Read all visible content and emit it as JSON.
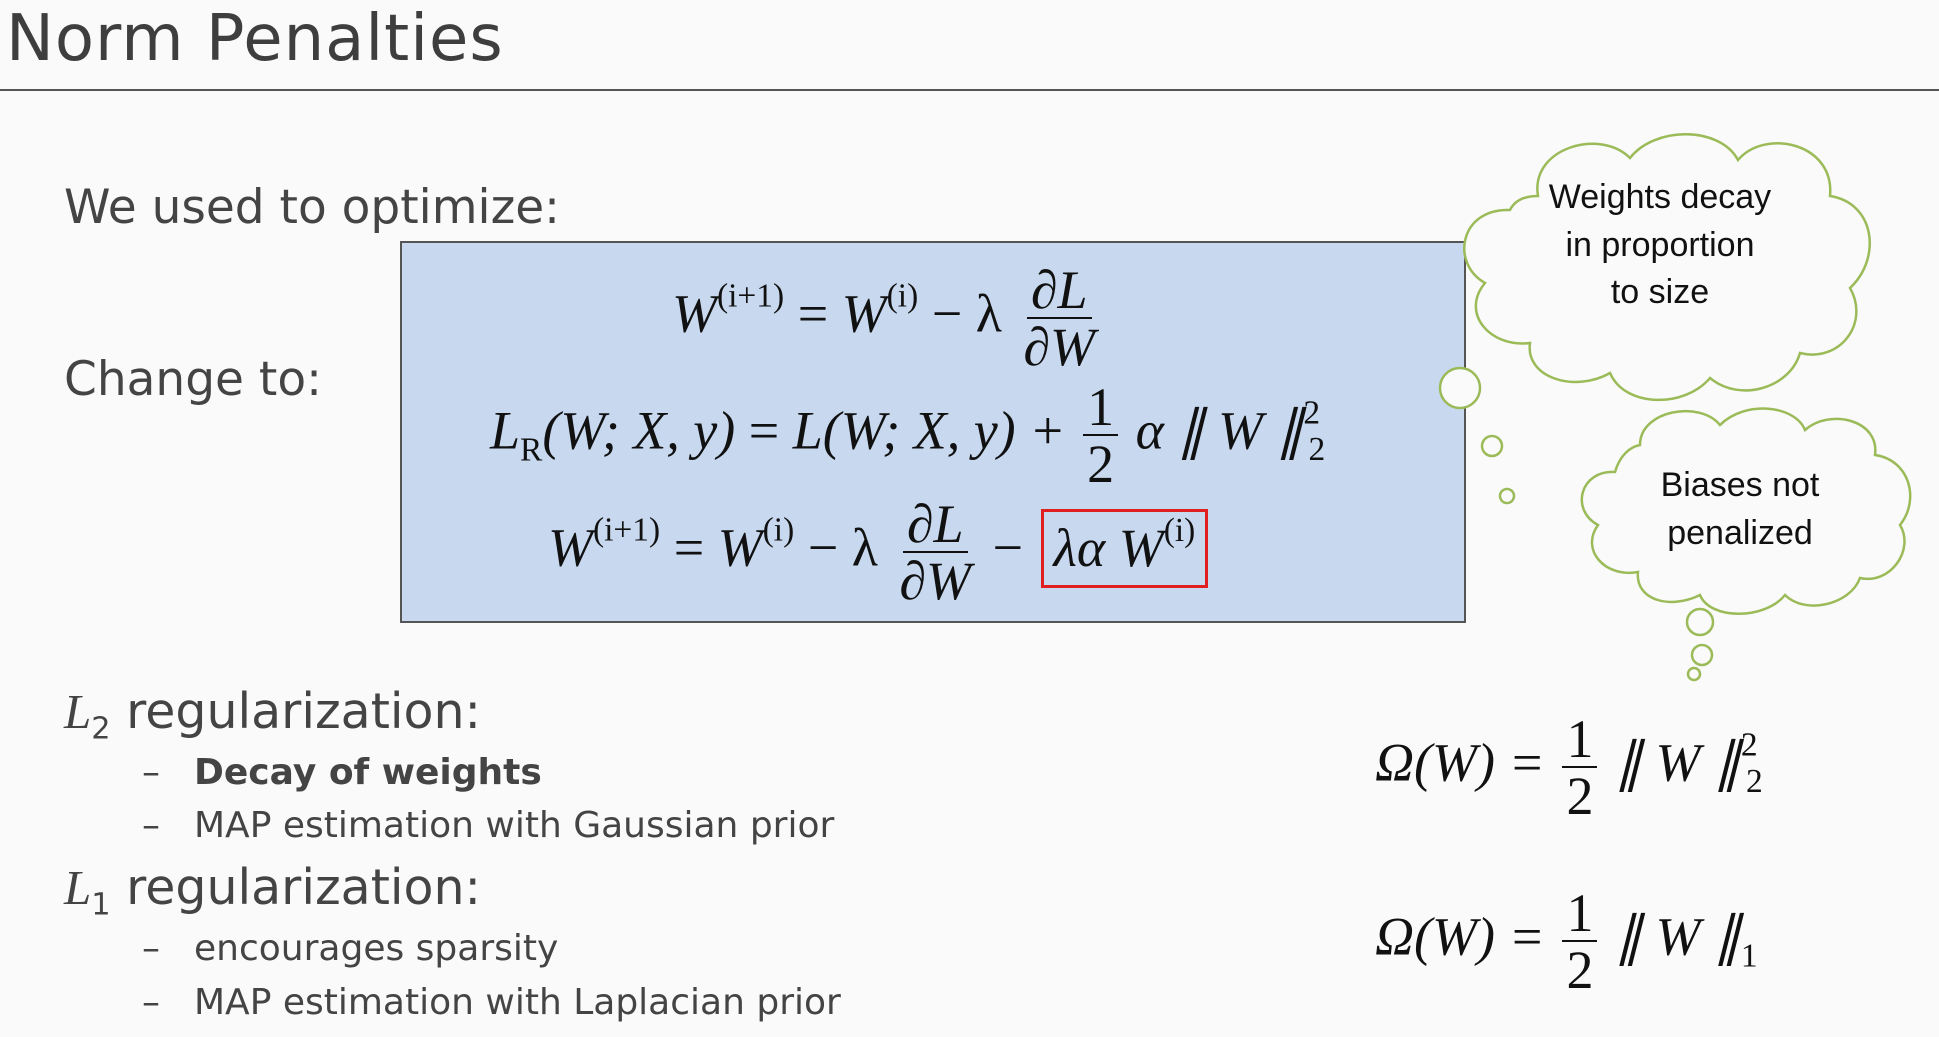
{
  "title": "Norm Penalties",
  "optimize_label": "We used to optimize:",
  "change_label": "Change to:",
  "equations": {
    "update_old": {
      "lhs_base": "W",
      "lhs_sup": "(i+1)",
      "eq": "=",
      "w": "W",
      "w_sup": "(i)",
      "minus_lambda": "− λ",
      "frac_num": "∂L",
      "frac_den": "∂W"
    },
    "loss_reg": {
      "l": "L",
      "l_sub": "R",
      "args": "(W; X, y)",
      "eq": "=",
      "rhs": "L(W; X, y) +",
      "half_num": "1",
      "half_den": "2",
      "tail": "α ∥ W ∥",
      "tail_sup": "2",
      "tail_sub": "2"
    },
    "update_new": {
      "lhs_base": "W",
      "lhs_sup": "(i+1)",
      "eq": "=",
      "w": "W",
      "w_sup": "(i)",
      "minus_lambda": "− λ",
      "frac_num": "∂L",
      "frac_den": "∂W",
      "minus": "−",
      "highlight": "λα W",
      "highlight_sup": "(i)"
    }
  },
  "clouds": {
    "weights_decay": [
      "Weights decay",
      "in proportion",
      "to size"
    ],
    "biases": [
      "Biases not",
      "penalized"
    ]
  },
  "l2": {
    "symbol": "L",
    "symbol_sub": "2",
    "label": "regularization:",
    "items": [
      "Decay of weights",
      "MAP estimation with Gaussian prior"
    ],
    "omega": {
      "lhs": "Ω(W) =",
      "num": "1",
      "den": "2",
      "norm": "∥ W ∥",
      "sup": "2",
      "sub": "2"
    }
  },
  "l1": {
    "symbol": "L",
    "symbol_sub": "1",
    "label": "regularization:",
    "items": [
      "encourages sparsity",
      "MAP estimation with Laplacian prior"
    ],
    "omega": {
      "lhs": "Ω(W) =",
      "num": "1",
      "den": "2",
      "norm": "∥ W ∥",
      "sub": "1"
    }
  },
  "colors": {
    "box_fill": "#c7d8ef",
    "highlight": "#e02020",
    "cloud_stroke": "#9bbb59"
  },
  "dash": "–"
}
